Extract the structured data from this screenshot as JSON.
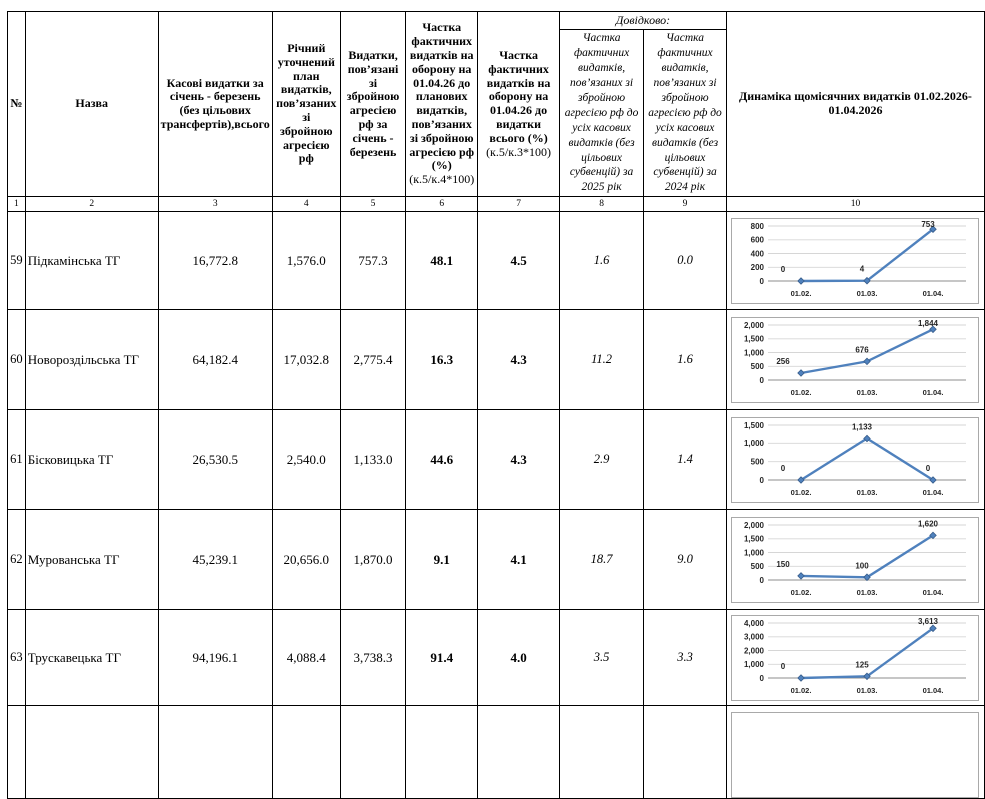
{
  "table": {
    "header": {
      "col1": "№",
      "col2": "Назва",
      "col3": "Касові видатки за січень - березень (без цільових трансфертів),всього",
      "col4": "Річний уточнений план видатків, пов’язаних зі збройною агресією рф",
      "col5": "Видатки, пов’язані зі збройною агресією рф за січень - березень",
      "col6": "Частка фактичних видатків на оборону на 01.04.26 до планових видатків, пов’язаних зі збройною агресією рф (%)",
      "col6_formula": "(к.5/к.4*100)",
      "col7": "Частка фактичних видатків на оборону на 01.04.26 до видатки всього (%)",
      "col7_formula": "(к.5/к.3*100)",
      "dovidkovo": "Довідково:",
      "col8": "Частка фактичних видатків, пов’язаних зі збройною агресією рф до усіх касових видатків (без цільових субвенцій) за 2025 рік",
      "col9": "Частка фактичних видатків, пов’язаних зі збройною агресією рф до усіх касових видатків (без цільових субвенцій) за 2024 рік",
      "col10": "Динаміка щомісячних видатків 01.02.2026-01.04.2026"
    },
    "column_numbers": [
      "1",
      "2",
      "3",
      "4",
      "5",
      "6",
      "7",
      "8",
      "9",
      "10"
    ],
    "rows": [
      {
        "num": "59",
        "name": "Підкамінська ТГ",
        "c3": "16,772.8",
        "c4": "1,576.0",
        "c5": "757.3",
        "c6": "48.1",
        "c7": "4.5",
        "c8": "1.6",
        "c9": "0.0"
      },
      {
        "num": "60",
        "name": "Новороздільська ТГ",
        "c3": "64,182.4",
        "c4": "17,032.8",
        "c5": "2,775.4",
        "c6": "16.3",
        "c7": "4.3",
        "c8": "11.2",
        "c9": "1.6"
      },
      {
        "num": "61",
        "name": "Бісковицька ТГ",
        "c3": "26,530.5",
        "c4": "2,540.0",
        "c5": "1,133.0",
        "c6": "44.6",
        "c7": "4.3",
        "c8": "2.9",
        "c9": "1.4"
      },
      {
        "num": "62",
        "name": "Мурованська ТГ",
        "c3": "45,239.1",
        "c4": "20,656.0",
        "c5": "1,870.0",
        "c6": "9.1",
        "c7": "4.1",
        "c8": "18.7",
        "c9": "9.0"
      },
      {
        "num": "63",
        "name": "Трускавецька ТГ",
        "c3": "94,196.1",
        "c4": "4,088.4",
        "c5": "3,738.3",
        "c6": "91.4",
        "c7": "4.0",
        "c8": "3.5",
        "c9": "3.3"
      },
      {
        "num": "",
        "name": "",
        "c3": "",
        "c4": "",
        "c5": "",
        "c6": "",
        "c7": "",
        "c8": "",
        "c9": ""
      }
    ]
  },
  "chart_data": [
    {
      "type": "line",
      "title": "",
      "categories": [
        "01.02.",
        "01.03.",
        "01.04."
      ],
      "values": [
        0,
        4,
        753
      ],
      "labels": [
        "0",
        "4",
        "753"
      ],
      "y_ticks": [
        "800",
        "600",
        "400",
        "200",
        "0"
      ],
      "ylim": [
        0,
        800
      ],
      "grid": true,
      "legend": "none"
    },
    {
      "type": "line",
      "title": "",
      "categories": [
        "01.02.",
        "01.03.",
        "01.04."
      ],
      "values": [
        256,
        676,
        1844
      ],
      "labels": [
        "256",
        "676",
        "1,844"
      ],
      "y_ticks": [
        "2,000",
        "1,500",
        "1,000",
        "500",
        "0"
      ],
      "ylim": [
        0,
        2000
      ],
      "grid": true,
      "legend": "none"
    },
    {
      "type": "line",
      "title": "",
      "categories": [
        "01.02.",
        "01.03.",
        "01.04."
      ],
      "values": [
        0,
        1133,
        0
      ],
      "labels": [
        "0",
        "1,133",
        "0"
      ],
      "y_ticks": [
        "1,500",
        "1,000",
        "500",
        "0"
      ],
      "ylim": [
        0,
        1500
      ],
      "grid": true,
      "legend": "none"
    },
    {
      "type": "line",
      "title": "",
      "categories": [
        "01.02.",
        "01.03.",
        "01.04."
      ],
      "values": [
        150,
        100,
        1620
      ],
      "labels": [
        "150",
        "100",
        "1,620"
      ],
      "y_ticks": [
        "2,000",
        "1,500",
        "1,000",
        "500",
        "0"
      ],
      "ylim": [
        0,
        2000
      ],
      "grid": true,
      "legend": "none"
    },
    {
      "type": "line",
      "title": "",
      "categories": [
        "01.02.",
        "01.03.",
        "01.04."
      ],
      "values": [
        0,
        125,
        3613
      ],
      "labels": [
        "0",
        "125",
        "3,613"
      ],
      "y_ticks": [
        "4,000",
        "3,000",
        "2,000",
        "1,000",
        "0"
      ],
      "ylim": [
        0,
        4000
      ],
      "grid": true,
      "legend": "none"
    }
  ],
  "colors": {
    "line": "#4F81BD",
    "marker_stroke": "#385D8A",
    "grid": "#D6D6D6",
    "axis": "#8C8C8C",
    "label": "#262626"
  }
}
